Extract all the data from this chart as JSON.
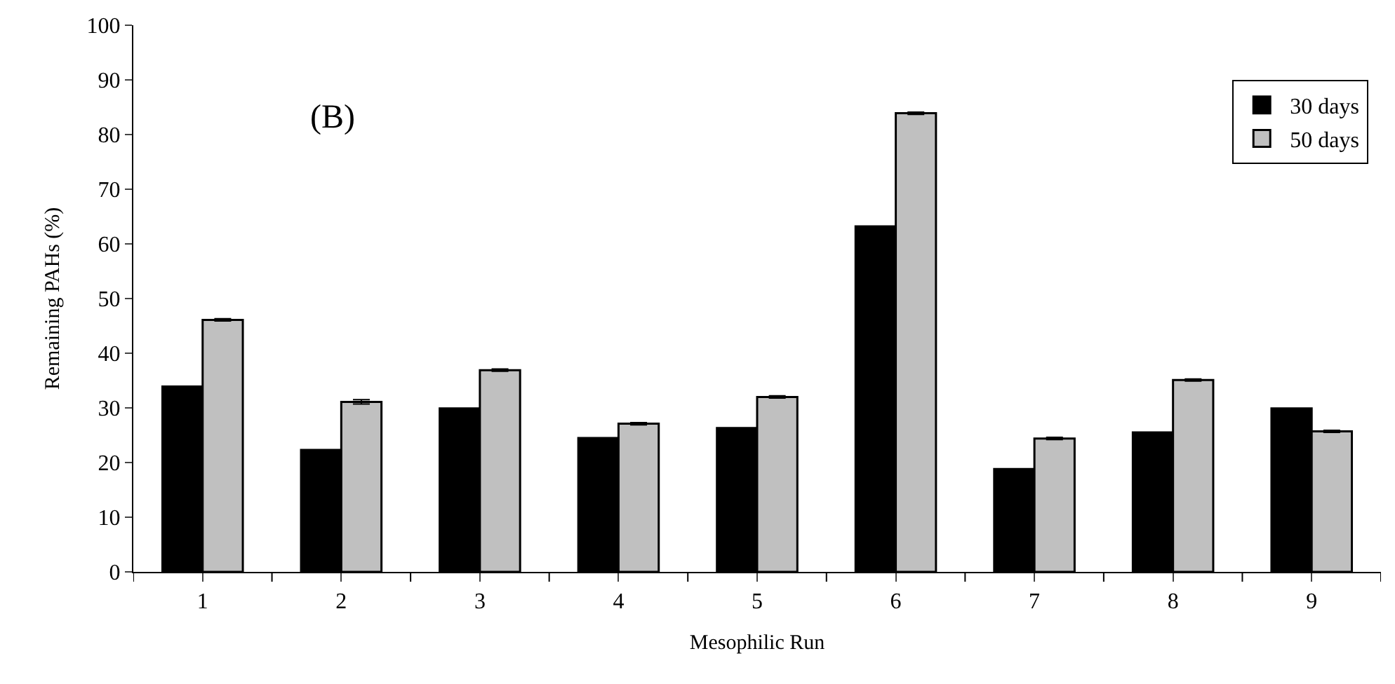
{
  "chart_data": {
    "type": "bar",
    "xlabel": "Mesophilic Run",
    "ylabel": "Remaining PAHs (%)",
    "annotations": [
      "(B)"
    ],
    "categories": [
      "1",
      "2",
      "3",
      "4",
      "5",
      "6",
      "7",
      "8",
      "9"
    ],
    "series": [
      {
        "name": "30 days",
        "color": "#000000",
        "values": [
          33.9,
          22.3,
          29.9,
          24.5,
          26.3,
          63.2,
          18.8,
          25.5,
          29.9
        ]
      },
      {
        "name": "50 days",
        "color": "#c0c0c0",
        "values": [
          46.1,
          31.1,
          36.9,
          27.1,
          32.0,
          83.9,
          24.4,
          35.1,
          25.7
        ],
        "errors": [
          0.2,
          0.4,
          0.2,
          0.2,
          0.2,
          0.2,
          0.2,
          0.2,
          0.2
        ]
      }
    ],
    "ylim": [
      0,
      100
    ],
    "yticks": [
      0,
      10,
      20,
      30,
      40,
      50,
      60,
      70,
      80,
      90,
      100
    ],
    "legend": "top right"
  }
}
